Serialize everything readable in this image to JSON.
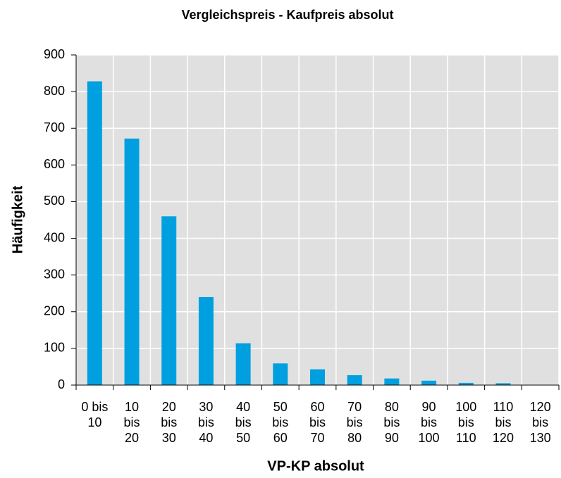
{
  "chart_data": {
    "type": "bar",
    "title": "Vergleichspreis - Kaufpreis absolut",
    "x_label": "VP-KP absolut",
    "y_label": "Häufigkeit",
    "categories": [
      "0 bis 10",
      "10 bis 20",
      "20 bis 30",
      "30 bis 40",
      "40 bis 50",
      "50 bis 60",
      "60 bis 70",
      "70 bis 80",
      "80 bis 90",
      "90 bis 100",
      "100 bis 110",
      "110 bis 120",
      "120 bis 130"
    ],
    "values": [
      828,
      672,
      460,
      240,
      114,
      59,
      43,
      27,
      18,
      12,
      6,
      5,
      0
    ],
    "color": "#00a0e0",
    "ylim": [
      0,
      900
    ],
    "yticks": [
      0,
      100,
      200,
      300,
      400,
      500,
      600,
      700,
      800,
      900
    ],
    "grid": true
  }
}
